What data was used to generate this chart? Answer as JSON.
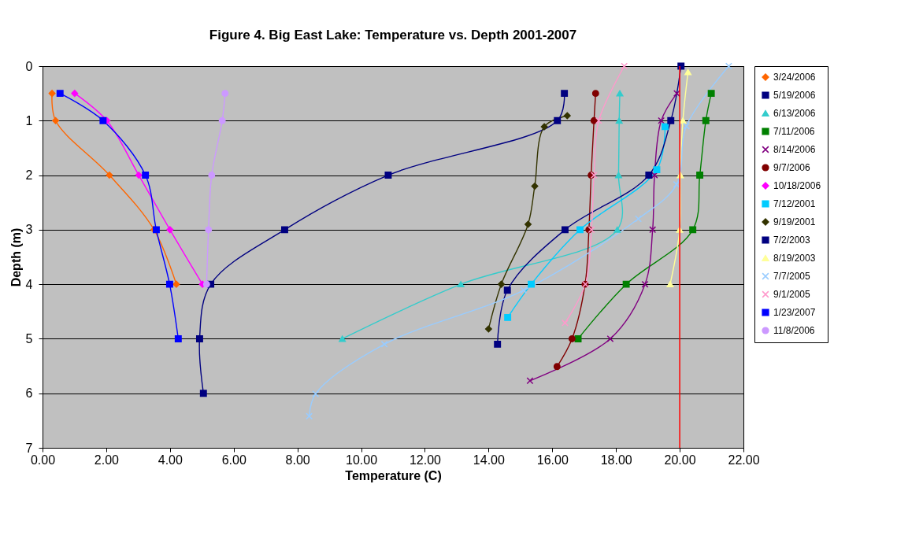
{
  "chart_data": {
    "type": "line",
    "title": "Figure 4. Big East Lake: Temperature vs. Depth 2001-2007",
    "xlabel": "Temperature (C)",
    "ylabel": "Depth (m)",
    "xlim": [
      0,
      22
    ],
    "xticks": [
      {
        "value": 0,
        "label": "0.00"
      },
      {
        "value": 2,
        "label": "2.00"
      },
      {
        "value": 4,
        "label": "4.00"
      },
      {
        "value": 6,
        "label": "6.00"
      },
      {
        "value": 8,
        "label": "8.00"
      },
      {
        "value": 10,
        "label": "10.00"
      },
      {
        "value": 12,
        "label": "12.00"
      },
      {
        "value": 14,
        "label": "14.00"
      },
      {
        "value": 16,
        "label": "16.00"
      },
      {
        "value": 18,
        "label": "18.00"
      },
      {
        "value": 20,
        "label": "20.00"
      },
      {
        "value": 22,
        "label": "22.00"
      }
    ],
    "ylim": [
      7,
      0
    ],
    "yticks": [
      0,
      1,
      2,
      3,
      4,
      5,
      6,
      7
    ],
    "grid": "y",
    "legend": "right",
    "ref_lines": [
      {
        "axis": "x",
        "value": 20,
        "color": "#ff0000"
      }
    ],
    "series": [
      {
        "name": "3/24/2006",
        "color": "#ff6600",
        "marker": "diamond",
        "x": [
          0.3,
          0.41,
          2.1,
          3.5,
          4.2
        ],
        "values": [
          0.5,
          1,
          2,
          3,
          4
        ]
      },
      {
        "name": "5/19/2006",
        "color": "#000080",
        "marker": "square",
        "x": [
          16.38,
          16.16,
          10.85,
          7.6,
          5.28,
          4.93,
          5.05
        ],
        "values": [
          0.5,
          1,
          2,
          3,
          4,
          5,
          6
        ]
      },
      {
        "name": "6/13/2006",
        "color": "#33cccc",
        "marker": "triangle",
        "x": [
          18.12,
          18.1,
          18.08,
          18.04,
          13.13,
          9.41
        ],
        "values": [
          0.5,
          1,
          2,
          3,
          4,
          5
        ]
      },
      {
        "name": "7/11/2006",
        "color": "#008000",
        "marker": "square",
        "x": [
          20.99,
          20.82,
          20.63,
          20.41,
          18.32,
          16.81
        ],
        "values": [
          0.5,
          1,
          2,
          3,
          4,
          5
        ]
      },
      {
        "name": "8/14/2006",
        "color": "#800080",
        "marker": "cross",
        "x": [
          19.91,
          19.42,
          19.21,
          19.15,
          18.91,
          17.82,
          15.3
        ],
        "values": [
          0.5,
          1,
          2,
          3,
          4,
          5,
          5.77
        ]
      },
      {
        "name": "9/7/2006",
        "color": "#800000",
        "marker": "circle",
        "x": [
          17.36,
          17.31,
          17.22,
          17.15,
          17.03,
          16.62,
          16.15
        ],
        "values": [
          0.5,
          1,
          2,
          3,
          4,
          5,
          5.51
        ]
      },
      {
        "name": "10/18/2006",
        "color": "#ff00ff",
        "marker": "diamond",
        "x": [
          1.01,
          2.02,
          3.02,
          4.0,
          5.02
        ],
        "values": [
          0.5,
          1,
          2,
          3,
          4
        ]
      },
      {
        "name": "7/12/2001",
        "color": "#00ccff",
        "marker": "square",
        "x": [
          19.54,
          19.28,
          16.87,
          15.34,
          14.6
        ],
        "values": [
          1.11,
          1.9,
          3,
          4,
          4.61
        ]
      },
      {
        "name": "9/19/2001",
        "color": "#333300",
        "marker": "diamond",
        "x": [
          16.47,
          15.75,
          15.45,
          15.24,
          14.4,
          14.0
        ],
        "values": [
          0.91,
          1.11,
          2.2,
          2.9,
          4,
          4.82
        ]
      },
      {
        "name": "7/2/2003",
        "color": "#000080",
        "marker": "square",
        "x": [
          20.04,
          19.72,
          19.03,
          16.4,
          14.59,
          14.28
        ],
        "values": [
          0,
          1,
          2,
          3,
          4.11,
          5.1
        ]
      },
      {
        "name": "8/19/2003",
        "color": "#ffff99",
        "marker": "triangle",
        "x": [
          20.26,
          20.1,
          20.02,
          20.0,
          19.7
        ],
        "values": [
          0.11,
          1,
          2,
          3,
          4
        ]
      },
      {
        "name": "7/7/2005",
        "color": "#99ccff",
        "marker": "cross",
        "x": [
          21.54,
          20.21,
          19.9,
          18.7,
          15.1,
          10.73,
          8.57,
          8.37
        ],
        "values": [
          0,
          1.1,
          2.17,
          2.8,
          4.11,
          5.1,
          6.01,
          6.42
        ]
      },
      {
        "name": "9/1/2005",
        "color": "#ff99cc",
        "marker": "cross",
        "x": [
          18.26,
          17.46,
          17.31,
          17.23,
          17.04,
          16.4
        ],
        "values": [
          0,
          1,
          2,
          3,
          4,
          4.71
        ]
      },
      {
        "name": "1/23/2007",
        "color": "#0000ff",
        "marker": "square",
        "x": [
          0.55,
          1.9,
          3.23,
          3.57,
          3.99,
          4.26
        ],
        "values": [
          0.5,
          1,
          2,
          3,
          4,
          5
        ]
      },
      {
        "name": "11/8/2006",
        "color": "#cc99ff",
        "marker": "circle",
        "x": [
          5.73,
          5.64,
          5.31,
          5.21,
          5.15
        ],
        "values": [
          0.5,
          1,
          2,
          3,
          4
        ]
      }
    ]
  }
}
